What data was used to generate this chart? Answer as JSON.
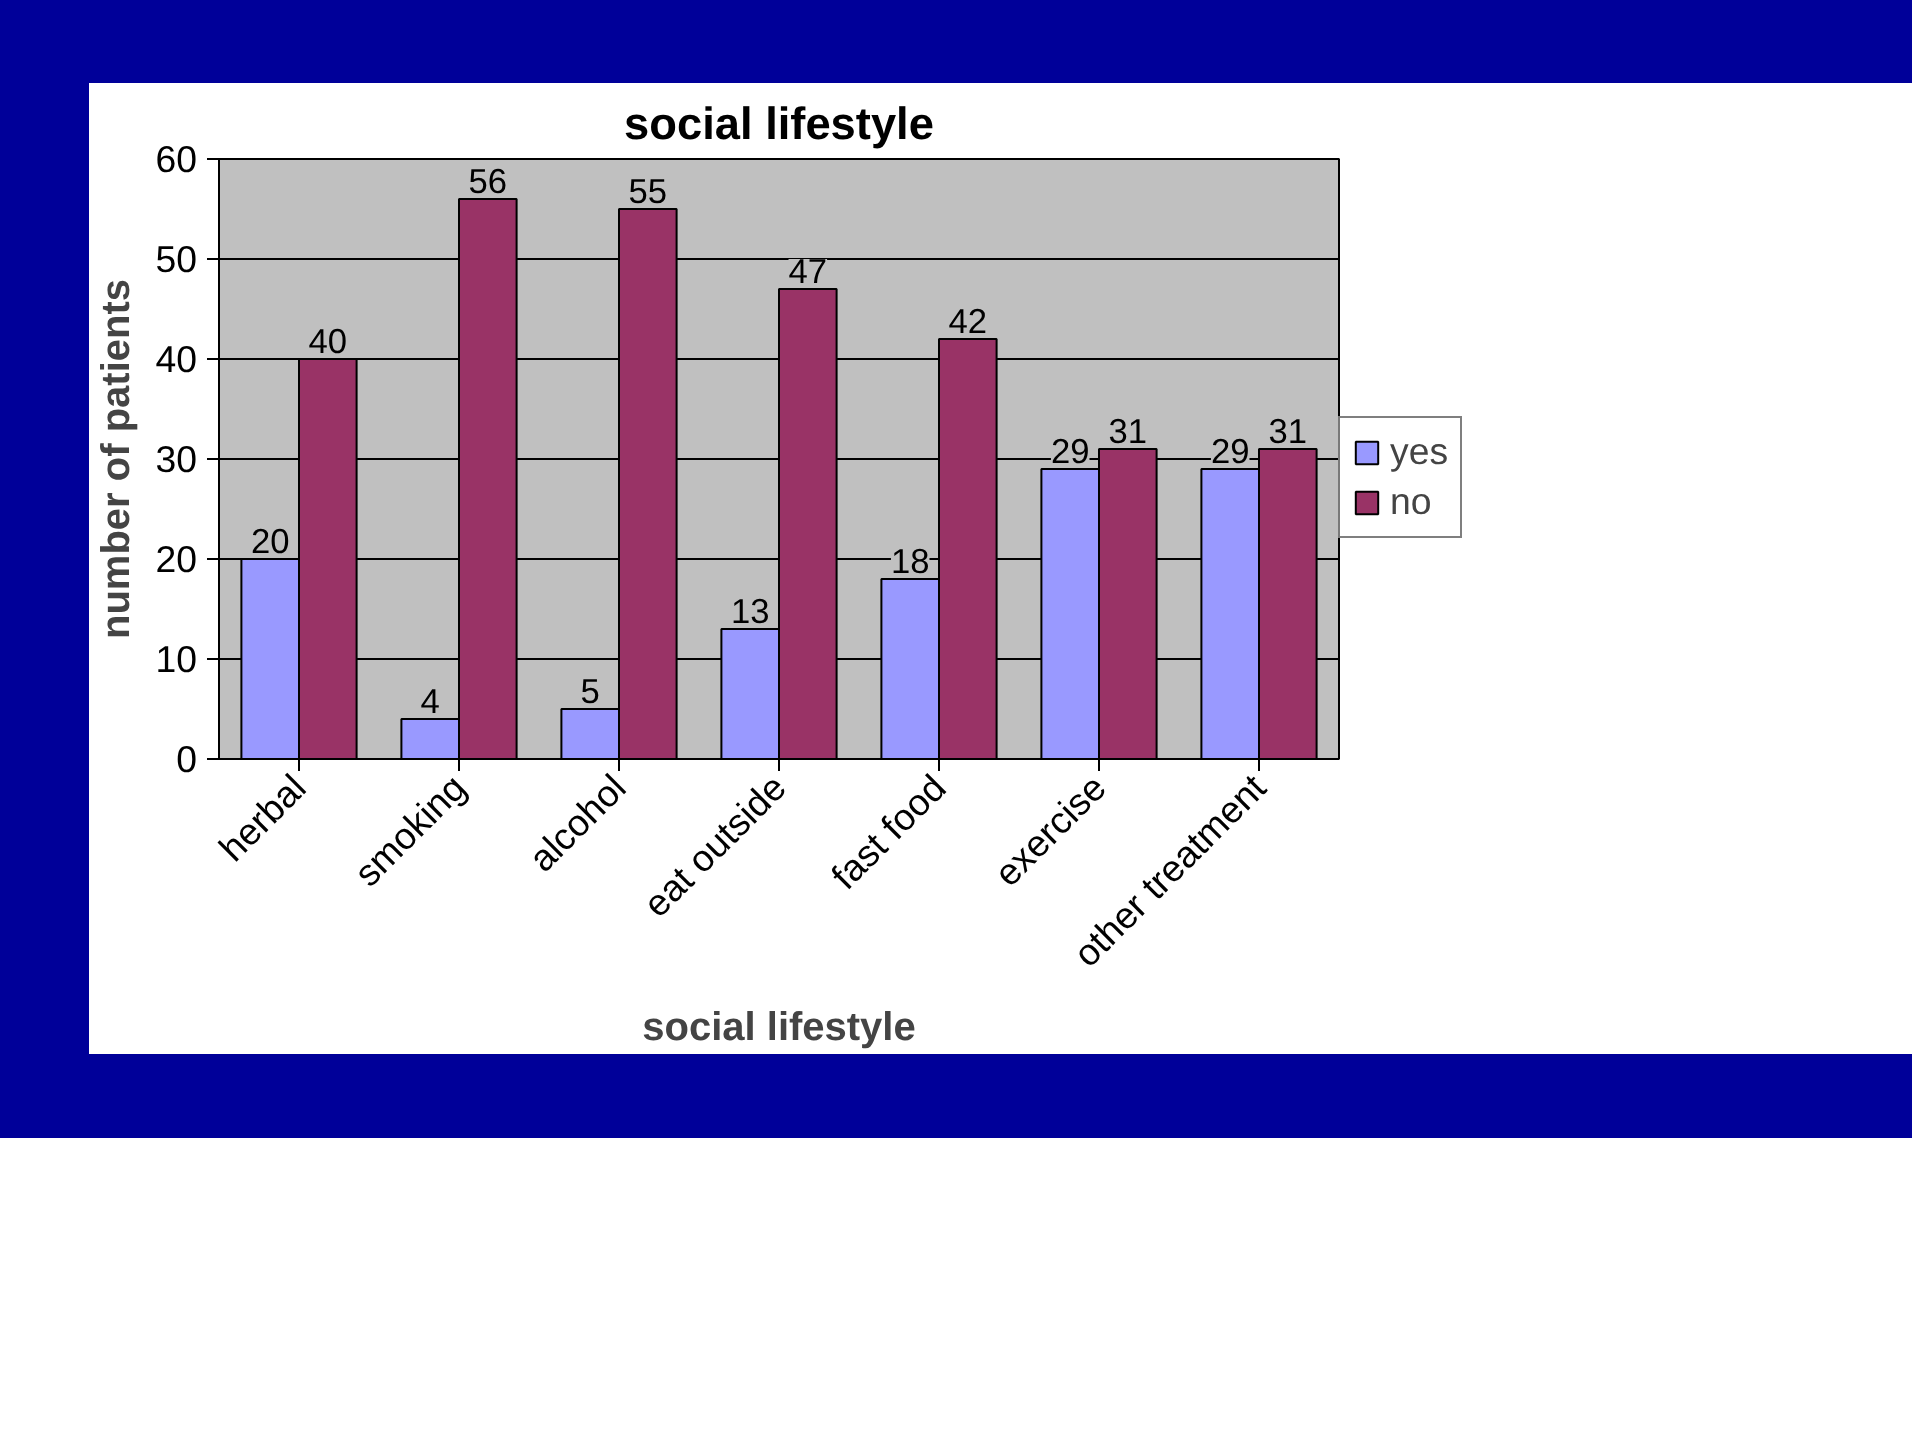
{
  "chart_data": {
    "type": "bar",
    "title": "social lifestyle",
    "xlabel": "social lifestyle",
    "ylabel": "number of patients",
    "categories": [
      "herbal",
      "smoking",
      "alcohol",
      "eat outside",
      "fast food",
      "exercise",
      "other treatment"
    ],
    "series": [
      {
        "name": "yes",
        "color": "#9999ff",
        "values": [
          20,
          4,
          5,
          13,
          18,
          29,
          29
        ]
      },
      {
        "name": "no",
        "color": "#993366",
        "values": [
          40,
          56,
          55,
          47,
          42,
          31,
          31
        ]
      }
    ],
    "ylim": [
      0,
      60
    ],
    "yticks": [
      0,
      10,
      20,
      30,
      40,
      50,
      60
    ],
    "grid": "y",
    "legend": "right",
    "data_labels": true
  }
}
